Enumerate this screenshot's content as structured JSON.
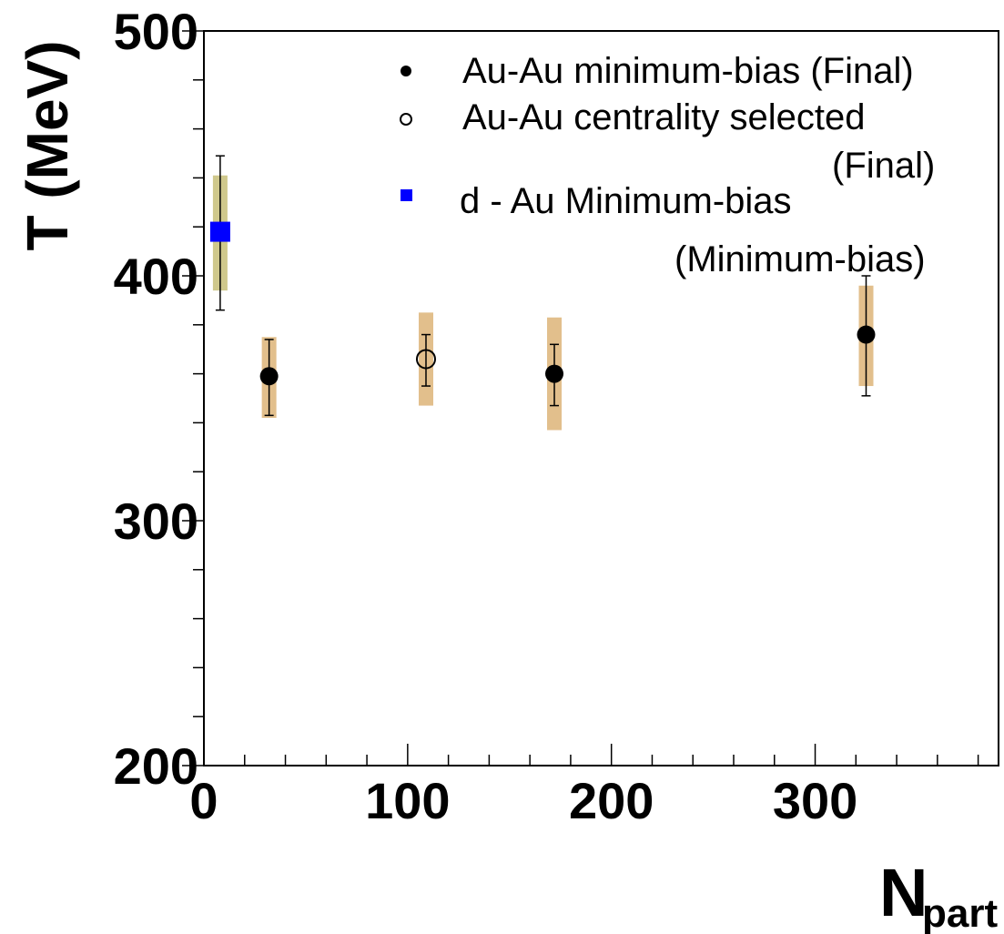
{
  "chart_data": {
    "type": "scatter",
    "xlabel": "N",
    "xlabel_sub": "part",
    "ylabel": "T (MeV)",
    "xlim": [
      0,
      390
    ],
    "ylim": [
      200,
      500
    ],
    "x_ticks": [
      0,
      100,
      200,
      300
    ],
    "x_tick_labels": [
      "0",
      "100",
      "200",
      "300"
    ],
    "y_ticks": [
      200,
      300,
      400,
      500
    ],
    "y_tick_labels": [
      "200",
      "300",
      "400",
      "500"
    ],
    "grid": false,
    "legend_position": "top-right",
    "legend": [
      {
        "label": "Au-Au minimum-bias (Final)",
        "marker": "filled-circle",
        "color": "#000000"
      },
      {
        "label": "Au-Au centrality selected",
        "marker": "open-circle",
        "color": "#000000"
      },
      {
        "label": "d - Au Minimum-bias",
        "marker": "filled-square",
        "color": "#0000ff"
      }
    ],
    "annotations": [
      "(Final)",
      "(Minimum-bias)"
    ],
    "series": [
      {
        "marker": "filled-circle",
        "color": "#000000",
        "points": [
          {
            "x": 32,
            "y": 359,
            "stat_low": 343,
            "stat_high": 374,
            "sys_low": 342,
            "sys_high": 375
          },
          {
            "x": 172,
            "y": 360,
            "stat_low": 347,
            "stat_high": 372,
            "sys_low": 337,
            "sys_high": 383
          },
          {
            "x": 325,
            "y": 376,
            "stat_low": 351,
            "stat_high": 400,
            "sys_low": 355,
            "sys_high": 396
          }
        ]
      },
      {
        "marker": "open-circle",
        "color": "#000000",
        "points": [
          {
            "x": 109,
            "y": 366,
            "stat_low": 355,
            "stat_high": 376,
            "sys_low": 347,
            "sys_high": 385
          }
        ]
      },
      {
        "marker": "filled-square",
        "color": "#0000ff",
        "points": [
          {
            "x": 8,
            "y": 418,
            "stat_low": 386,
            "stat_high": 449,
            "sys_low": 394,
            "sys_high": 441
          }
        ]
      }
    ],
    "colors": {
      "sys_band_auau": "#e2bf8c",
      "sys_band_dau": "#cfc88c",
      "axis": "#000000"
    }
  }
}
